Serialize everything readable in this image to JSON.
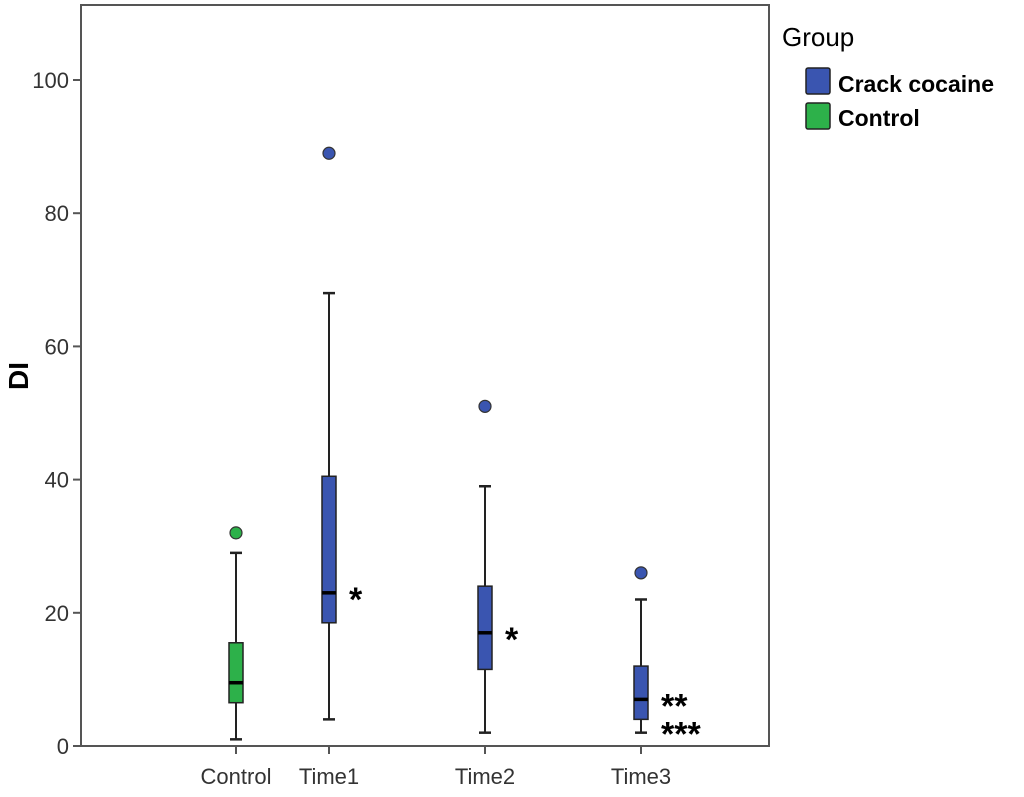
{
  "chart_data": {
    "type": "box",
    "ylabel": "DI",
    "xlabel": "",
    "ylim": [
      0,
      110
    ],
    "yticks": [
      0,
      20,
      40,
      60,
      80,
      100
    ],
    "grid": false,
    "categories": [
      "Control",
      "Time1",
      "Time2",
      "Time3"
    ],
    "legend": {
      "title": "Group",
      "position": "right",
      "entries": [
        {
          "name": "Crack cocaine",
          "color": "#3a55b0"
        },
        {
          "name": "Control",
          "color": "#2db14a"
        }
      ]
    },
    "boxes": [
      {
        "category": "Control",
        "group": "Control",
        "min": 1,
        "q1": 6.5,
        "median": 9.5,
        "q3": 15.5,
        "max": 29,
        "outliers": [
          32
        ],
        "annotation": ""
      },
      {
        "category": "Time1",
        "group": "Crack cocaine",
        "min": 4,
        "q1": 18.5,
        "median": 23,
        "q3": 40.5,
        "max": 68,
        "outliers": [
          89
        ],
        "annotation": "*"
      },
      {
        "category": "Time2",
        "group": "Crack cocaine",
        "min": 2,
        "q1": 11.5,
        "median": 17,
        "q3": 24,
        "max": 39,
        "outliers": [
          51
        ],
        "annotation": "*"
      },
      {
        "category": "Time3",
        "group": "Crack cocaine",
        "min": 2,
        "q1": 4,
        "median": 7,
        "q3": 12,
        "max": 22,
        "outliers": [
          26
        ],
        "annotation": "**\n***"
      }
    ]
  }
}
